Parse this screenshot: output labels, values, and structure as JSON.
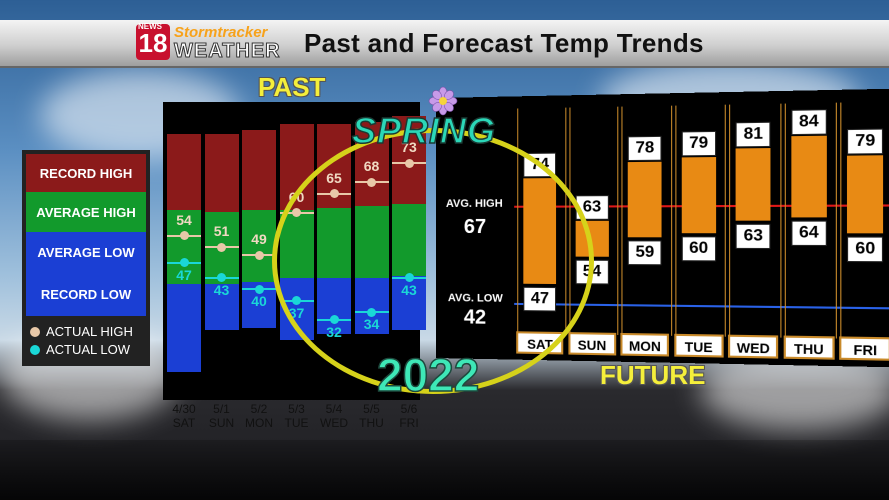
{
  "header": {
    "logo_news": "NEWS",
    "logo_number": "18",
    "logo_brand": "Stormtracker",
    "logo_weather": "WEATHER",
    "title": "Past and Forecast Temp Trends"
  },
  "labels": {
    "past": "PAST",
    "future": "FUTURE",
    "spring": "SPRING",
    "year": "2022"
  },
  "legend": {
    "bands": [
      "RECORD HIGH",
      "AVERAGE HIGH",
      "AVERAGE LOW",
      "RECORD LOW"
    ],
    "actual_high": "ACTUAL HIGH",
    "actual_low": "ACTUAL LOW",
    "colors": {
      "record_high": "#8b1a1a",
      "average_high": "#129a2c",
      "average_low": "#1b3fd4",
      "record_low": "#1b3fd4",
      "actual_high": "#e8c8a8",
      "actual_low": "#1ad7d7"
    }
  },
  "future_labels": {
    "avg_high_label": "AVG. HIGH",
    "avg_high_value": "67",
    "avg_low_label": "AVG. LOW",
    "avg_low_value": "42"
  },
  "chart_data": [
    {
      "type": "line",
      "title": "PAST",
      "categories": [
        "4/30 SAT",
        "5/1 SUN",
        "5/2 MON",
        "5/3 TUE",
        "5/4 WED",
        "5/5 THU",
        "5/6 FRI"
      ],
      "dates": [
        "4/30",
        "5/1",
        "5/2",
        "5/3",
        "5/4",
        "5/5",
        "5/6"
      ],
      "days": [
        "SAT",
        "SUN",
        "MON",
        "TUE",
        "WED",
        "THU",
        "FRI"
      ],
      "series": [
        {
          "name": "ACTUAL HIGH",
          "values": [
            54,
            51,
            49,
            60,
            65,
            68,
            73
          ]
        },
        {
          "name": "ACTUAL LOW",
          "values": [
            47,
            43,
            40,
            37,
            32,
            34,
            43
          ]
        }
      ]
    },
    {
      "type": "bar",
      "title": "FUTURE",
      "categories": [
        "SAT",
        "SUN",
        "MON",
        "TUE",
        "WED",
        "THU",
        "FRI"
      ],
      "highs": [
        74,
        63,
        78,
        79,
        81,
        84,
        79
      ],
      "lows": [
        47,
        54,
        59,
        60,
        63,
        64,
        60
      ],
      "reference_lines": {
        "AVG. HIGH": 67,
        "AVG. LOW": 42
      }
    }
  ]
}
